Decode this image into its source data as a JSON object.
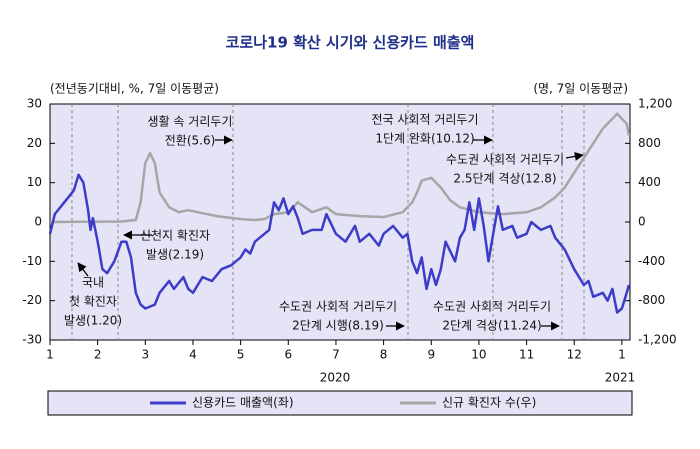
{
  "chart_data": {
    "type": "line",
    "title": "코로나19 확산 시기와 신용카드 매출액",
    "y_label": "(전년동기대비, %, 7일 이동평균)",
    "y2_label": "(명, 7일 이동평균)",
    "years": [
      "2020",
      "2021"
    ],
    "xlim": [
      1,
      13.17
    ],
    "xticks": [
      {
        "value": 1,
        "label": "1"
      },
      {
        "value": 2,
        "label": "2"
      },
      {
        "value": 3,
        "label": "3"
      },
      {
        "value": 4,
        "label": "4"
      },
      {
        "value": 5,
        "label": "5"
      },
      {
        "value": 6,
        "label": "6"
      },
      {
        "value": 7,
        "label": "7"
      },
      {
        "value": 8,
        "label": "8"
      },
      {
        "value": 9,
        "label": "9"
      },
      {
        "value": 10,
        "label": "10"
      },
      {
        "value": 11,
        "label": "11"
      },
      {
        "value": 12,
        "label": "12"
      },
      {
        "value": 13,
        "label": "1"
      }
    ],
    "ylim": [
      -30,
      30
    ],
    "yticks": [
      30,
      20,
      10,
      0,
      -10,
      -20,
      -30
    ],
    "y2lim": [
      -1200,
      1200
    ],
    "y2ticks": [
      {
        "value": 1200,
        "label": "1,200"
      },
      800,
      400,
      0,
      -400,
      -800,
      {
        "value": -1200,
        "label": "-1,200"
      }
    ],
    "annotations": [
      [
        "생활 속 거리두기",
        "전환(5.6)"
      ],
      [
        "신천지 확진자",
        "발생(2.19)"
      ],
      [
        "국내",
        "첫 확진자",
        "발생(1.20)"
      ],
      [
        "전국 사회적 거리두기",
        "1단계 완화(10.12)"
      ],
      [
        "수도권 사회적 거리두기",
        "2.5단계 격상(12.8)"
      ],
      [
        "수도권 사회적 거리두기",
        "2단계 시행(8.19)"
      ],
      [
        "수도권 사회적 거리두기",
        "2단계 격상(11.24)"
      ]
    ],
    "series": [
      {
        "name": "신용카드 매출액(좌)",
        "color": "#3c3cc8",
        "axis": "y",
        "x": [
          1.0,
          1.1,
          1.3,
          1.5,
          1.6,
          1.7,
          1.8,
          1.85,
          1.9,
          2.0,
          2.1,
          2.2,
          2.35,
          2.5,
          2.6,
          2.7,
          2.8,
          2.9,
          3.0,
          3.2,
          3.3,
          3.5,
          3.6,
          3.8,
          3.9,
          4.0,
          4.2,
          4.4,
          4.6,
          4.8,
          5.0,
          5.1,
          5.2,
          5.3,
          5.5,
          5.6,
          5.7,
          5.8,
          5.9,
          6.0,
          6.1,
          6.2,
          6.3,
          6.5,
          6.7,
          6.8,
          7.0,
          7.2,
          7.4,
          7.5,
          7.7,
          7.9,
          8.0,
          8.2,
          8.4,
          8.5,
          8.6,
          8.7,
          8.8,
          8.9,
          9.0,
          9.1,
          9.2,
          9.3,
          9.5,
          9.6,
          9.7,
          9.8,
          9.9,
          10.0,
          10.1,
          10.2,
          10.3,
          10.4,
          10.5,
          10.7,
          10.8,
          11.0,
          11.1,
          11.3,
          11.5,
          11.6,
          11.8,
          12.0,
          12.2,
          12.3,
          12.4,
          12.6,
          12.7,
          12.8,
          12.9,
          13.0,
          13.1,
          13.15
        ],
        "values": [
          -3,
          2,
          5,
          8,
          12,
          10,
          3,
          -2,
          1,
          -5,
          -12,
          -13,
          -10,
          -5,
          -5,
          -9,
          -18,
          -21,
          -22,
          -21,
          -18,
          -15,
          -17,
          -14,
          -17,
          -18,
          -14,
          -15,
          -12,
          -11,
          -9,
          -7,
          -8,
          -5,
          -3,
          -2,
          5,
          3,
          6,
          2,
          4,
          1,
          -3,
          -2,
          -2,
          2,
          -3,
          -5,
          -1,
          -5,
          -3,
          -6,
          -3,
          -1,
          -4,
          -3,
          -10,
          -13,
          -9,
          -17,
          -12,
          -16,
          -12,
          -5,
          -10,
          -4,
          -2,
          5,
          -2,
          6,
          -1,
          -10,
          -3,
          4,
          -2,
          -1,
          -4,
          -3,
          0,
          -2,
          -1,
          -4,
          -7,
          -12,
          -16,
          -15,
          -19,
          -18,
          -20,
          -17,
          -23,
          -22,
          -18,
          -16
        ]
      },
      {
        "name": "신규 확진자 수(우)",
        "color": "#a6a6a6",
        "axis": "y2",
        "x": [
          1.0,
          2.5,
          2.8,
          2.9,
          3.0,
          3.1,
          3.2,
          3.3,
          3.5,
          3.7,
          3.9,
          4.2,
          4.5,
          5.0,
          5.3,
          5.5,
          5.7,
          6.0,
          6.2,
          6.5,
          6.8,
          7.0,
          7.5,
          8.0,
          8.4,
          8.6,
          8.7,
          8.8,
          9.0,
          9.2,
          9.4,
          9.6,
          10.0,
          10.5,
          11.0,
          11.3,
          11.6,
          11.8,
          12.0,
          12.2,
          12.4,
          12.6,
          12.8,
          12.9,
          13.0,
          13.1,
          13.15
        ],
        "values": [
          0,
          5,
          20,
          200,
          600,
          700,
          600,
          300,
          150,
          100,
          120,
          90,
          60,
          30,
          20,
          30,
          80,
          100,
          200,
          100,
          150,
          80,
          60,
          50,
          100,
          200,
          300,
          420,
          450,
          350,
          220,
          150,
          100,
          80,
          100,
          150,
          250,
          350,
          500,
          650,
          800,
          950,
          1050,
          1100,
          1050,
          1000,
          880
        ]
      }
    ]
  }
}
